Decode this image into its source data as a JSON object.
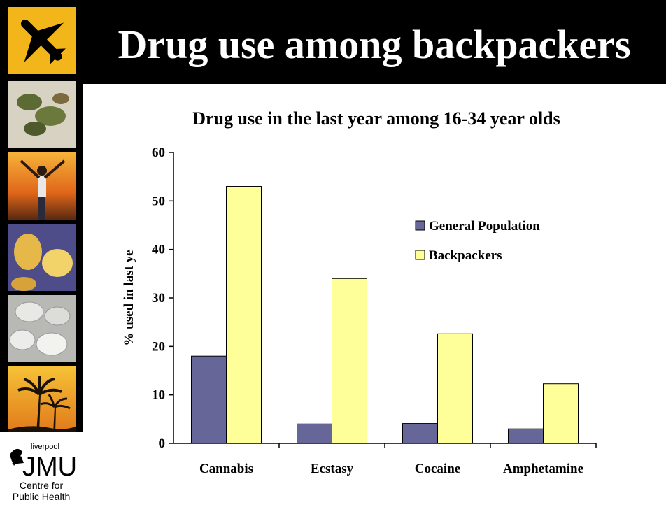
{
  "slide": {
    "title": "Drug use among backpackers",
    "logo_text": "JMU",
    "logo_small": "liverpool",
    "centre_line1": "Centre for",
    "centre_line2": "Public Health"
  },
  "sidebar": {
    "thumbnails": [
      {
        "name": "airplane-icon",
        "bg": "#f2b51a"
      },
      {
        "name": "cannabis-photo",
        "bg": "#cfc9b8"
      },
      {
        "name": "sunset-person-photo",
        "bg": "#e0781d"
      },
      {
        "name": "crystals-photo",
        "bg": "#6d6aa8"
      },
      {
        "name": "pills-photo",
        "bg": "#c7c8c4"
      },
      {
        "name": "palm-trees-photo",
        "bg": "#f0a028"
      }
    ]
  },
  "colors": {
    "general_population": "#666699",
    "backpackers": "#ffff99"
  },
  "chart_data": {
    "type": "bar",
    "title": "Drug use in the last year among 16-34 year olds",
    "ylabel": "% used in last ye",
    "xlabel": "",
    "categories": [
      "Cannabis",
      "Ecstasy",
      "Cocaine",
      "Amphetamine"
    ],
    "series": [
      {
        "name": "General Population",
        "values": [
          18,
          4,
          4.1,
          3
        ]
      },
      {
        "name": "Backpackers",
        "values": [
          53,
          34,
          22.6,
          12.3
        ]
      }
    ],
    "ylim": [
      0,
      60
    ],
    "yticks": [
      "0",
      "10",
      "20",
      "30",
      "40",
      "50",
      "60"
    ],
    "grid": false,
    "legend_position": "right"
  }
}
